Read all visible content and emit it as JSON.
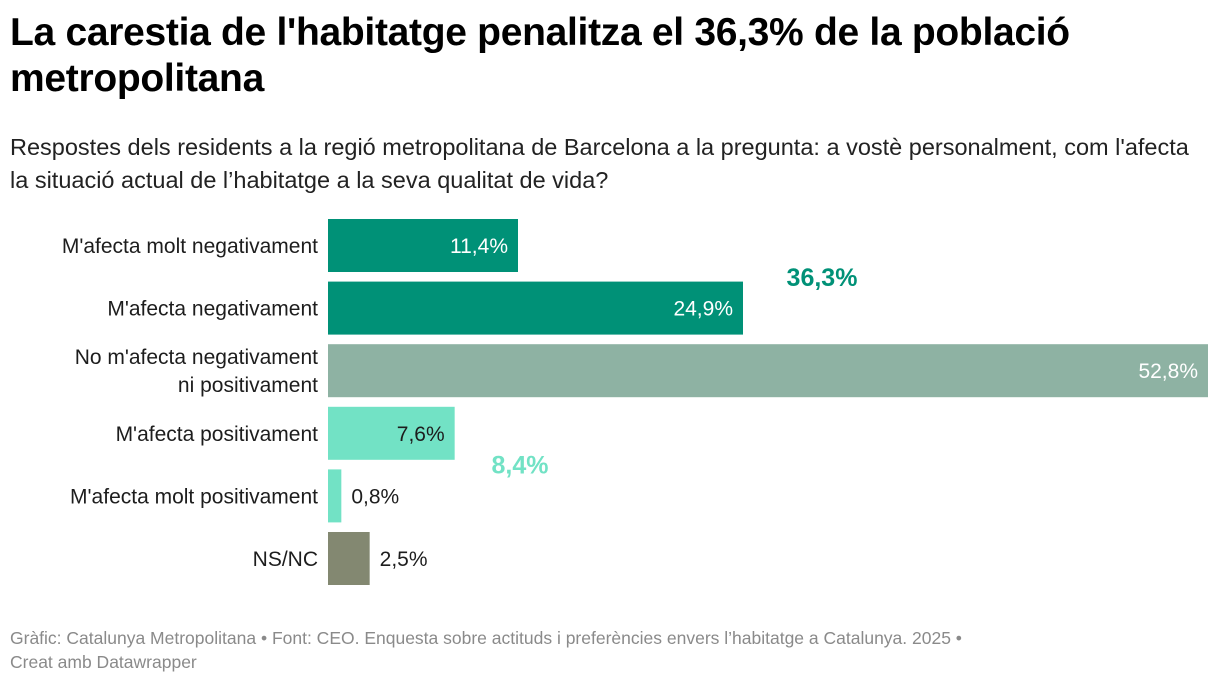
{
  "header": {
    "title": "La carestia de l'habitatge penalitza el 36,3% de la població metropolitana",
    "subtitle": "Respostes dels residents a la regió metropolitana de Barcelona a la pregunta: a vostè personalment, com l'afecta la situació actual de l’habitatge a la seva qualitat de vida?"
  },
  "footer": {
    "line1": "Gràfic: Catalunya Metropolitana • Font: CEO. Enquesta sobre actituds i preferències envers l’habitatge a Catalunya. 2025 •",
    "line2": "Creat amb Datawrapper"
  },
  "chart_data": {
    "type": "bar",
    "orientation": "horizontal",
    "title": "La carestia de l'habitatge penalitza el 36,3% de la població metropolitana",
    "categories": [
      [
        "M'afecta molt negativament"
      ],
      [
        "M'afecta negativament"
      ],
      [
        "No m'afecta negativament",
        "ni positivament"
      ],
      [
        "M'afecta positivament"
      ],
      [
        "M'afecta molt positivament"
      ],
      [
        "NS/NC"
      ]
    ],
    "values": [
      11.4,
      24.9,
      52.8,
      7.6,
      0.8,
      2.5
    ],
    "value_labels": [
      "11,4%",
      "24,9%",
      "52,8%",
      "7,6%",
      "0,8%",
      "2,5%"
    ],
    "colors": [
      "#009177",
      "#009177",
      "#8eb2a3",
      "#72e2c5",
      "#72e2c5",
      "#838871"
    ],
    "xlim": [
      0,
      52.8
    ],
    "grid": false,
    "annotations": [
      {
        "text": "36,3%",
        "color": "#009177",
        "rows": [
          0,
          1
        ]
      },
      {
        "text": "8,4%",
        "color": "#72e2c5",
        "rows": [
          3,
          4
        ]
      }
    ]
  }
}
